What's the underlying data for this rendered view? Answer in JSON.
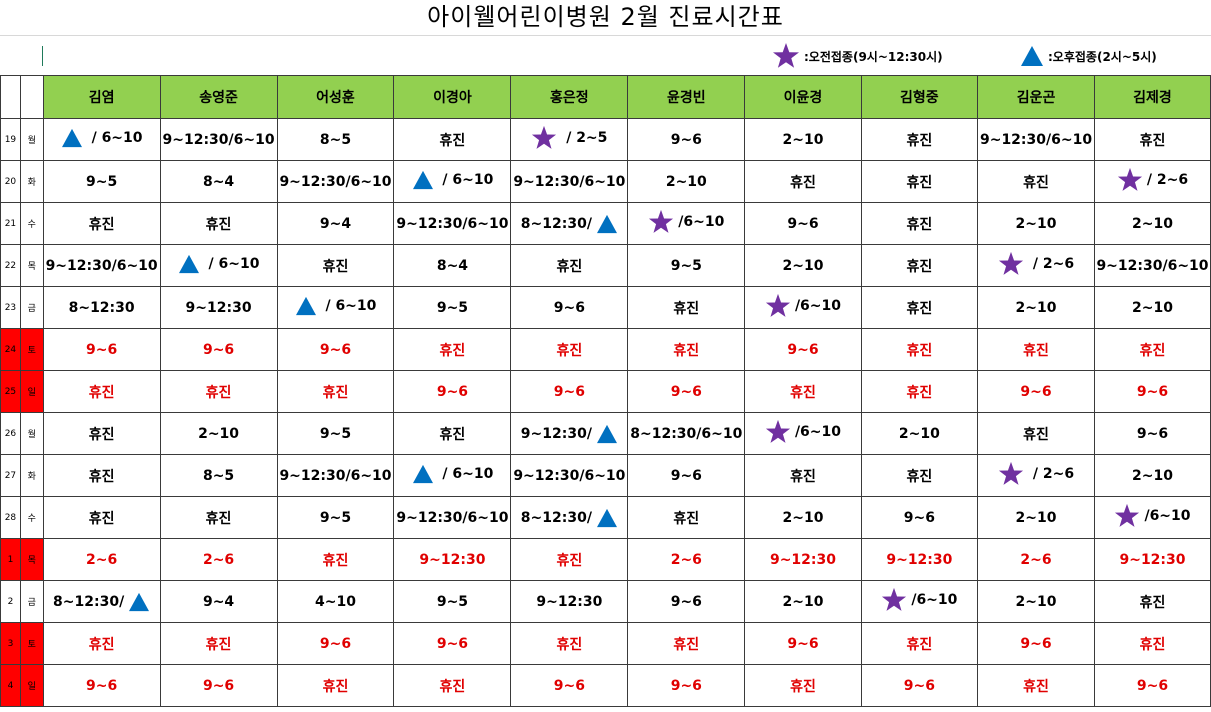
{
  "title": "아이웰어린이병원  2월 진료시간표",
  "legend": {
    "morning": {
      "icon": "star-icon",
      "color": "#7030a0",
      "label": ":오전접종(9시~12:30시)"
    },
    "afternoon": {
      "icon": "triangle-icon",
      "color": "#0070c0",
      "label": ":오후접종(2시~5시)"
    }
  },
  "doctors": [
    "김염",
    "송영준",
    "어성훈",
    "이경아",
    "홍은정",
    "윤경빈",
    "이윤경",
    "김형중",
    "김운곤",
    "김제경"
  ],
  "rows": [
    {
      "day": "19",
      "weekday": "월",
      "red": false,
      "cells": [
        {
          "icon": "triangle",
          "text": " / 6~10"
        },
        {
          "text": "9~12:30/6~10"
        },
        {
          "text": "8~5"
        },
        {
          "text": "휴진"
        },
        {
          "icon": "star",
          "text": " / 2~5"
        },
        {
          "text": "9~6"
        },
        {
          "text": "2~10"
        },
        {
          "text": "휴진"
        },
        {
          "text": "9~12:30/6~10"
        },
        {
          "text": "휴진"
        }
      ]
    },
    {
      "day": "20",
      "weekday": "화",
      "red": false,
      "cells": [
        {
          "text": "9~5"
        },
        {
          "text": "8~4"
        },
        {
          "text": "9~12:30/6~10"
        },
        {
          "icon": "triangle",
          "text": " / 6~10"
        },
        {
          "text": "9~12:30/6~10"
        },
        {
          "text": "2~10"
        },
        {
          "text": "휴진"
        },
        {
          "text": "휴진"
        },
        {
          "text": "휴진"
        },
        {
          "icon": "star",
          "text": "/ 2~6"
        }
      ]
    },
    {
      "day": "21",
      "weekday": "수",
      "red": false,
      "cells": [
        {
          "text": "휴진"
        },
        {
          "text": "휴진"
        },
        {
          "text": "9~4"
        },
        {
          "text": "9~12:30/6~10"
        },
        {
          "text": "8~12:30/",
          "iconAfter": "triangle"
        },
        {
          "icon": "star",
          "text": "/6~10"
        },
        {
          "text": "9~6"
        },
        {
          "text": "휴진"
        },
        {
          "text": "2~10"
        },
        {
          "text": "2~10"
        }
      ]
    },
    {
      "day": "22",
      "weekday": "목",
      "red": false,
      "cells": [
        {
          "text": "9~12:30/6~10"
        },
        {
          "icon": "triangle",
          "text": " / 6~10"
        },
        {
          "text": "휴진"
        },
        {
          "text": "8~4"
        },
        {
          "text": "휴진"
        },
        {
          "text": "9~5"
        },
        {
          "text": "2~10"
        },
        {
          "text": "휴진"
        },
        {
          "icon": "star",
          "text": " / 2~6"
        },
        {
          "text": "9~12:30/6~10"
        }
      ]
    },
    {
      "day": "23",
      "weekday": "금",
      "red": false,
      "cells": [
        {
          "text": "8~12:30"
        },
        {
          "text": "9~12:30"
        },
        {
          "icon": "triangle",
          "text": " / 6~10"
        },
        {
          "text": "9~5"
        },
        {
          "text": "9~6"
        },
        {
          "text": "휴진"
        },
        {
          "icon": "star",
          "text": "/6~10"
        },
        {
          "text": "휴진"
        },
        {
          "text": "2~10"
        },
        {
          "text": "2~10"
        }
      ]
    },
    {
      "day": "24",
      "weekday": "토",
      "red": true,
      "cells": [
        {
          "text": "9~6"
        },
        {
          "text": "9~6"
        },
        {
          "text": "9~6"
        },
        {
          "text": "휴진"
        },
        {
          "text": "휴진"
        },
        {
          "text": "휴진"
        },
        {
          "text": "9~6"
        },
        {
          "text": "휴진"
        },
        {
          "text": "휴진"
        },
        {
          "text": "휴진"
        }
      ]
    },
    {
      "day": "25",
      "weekday": "일",
      "red": true,
      "cells": [
        {
          "text": "휴진"
        },
        {
          "text": "휴진"
        },
        {
          "text": "휴진"
        },
        {
          "text": "9~6"
        },
        {
          "text": "9~6"
        },
        {
          "text": "9~6"
        },
        {
          "text": "휴진"
        },
        {
          "text": "휴진"
        },
        {
          "text": "9~6"
        },
        {
          "text": "9~6"
        }
      ]
    },
    {
      "day": "26",
      "weekday": "월",
      "red": false,
      "cells": [
        {
          "text": "휴진"
        },
        {
          "text": "2~10"
        },
        {
          "text": "9~5"
        },
        {
          "text": "휴진"
        },
        {
          "text": "9~12:30/",
          "iconAfter": "triangle"
        },
        {
          "text": "8~12:30/6~10"
        },
        {
          "icon": "star",
          "text": "/6~10"
        },
        {
          "text": "2~10"
        },
        {
          "text": "휴진"
        },
        {
          "text": "9~6"
        }
      ]
    },
    {
      "day": "27",
      "weekday": "화",
      "red": false,
      "cells": [
        {
          "text": "휴진"
        },
        {
          "text": "8~5"
        },
        {
          "text": "9~12:30/6~10"
        },
        {
          "icon": "triangle",
          "text": " / 6~10"
        },
        {
          "text": "9~12:30/6~10"
        },
        {
          "text": "9~6"
        },
        {
          "text": "휴진"
        },
        {
          "text": "휴진"
        },
        {
          "icon": "star",
          "text": " / 2~6"
        },
        {
          "text": "2~10"
        }
      ]
    },
    {
      "day": "28",
      "weekday": "수",
      "red": false,
      "cells": [
        {
          "text": "휴진"
        },
        {
          "text": "휴진"
        },
        {
          "text": "9~5"
        },
        {
          "text": "9~12:30/6~10"
        },
        {
          "text": "8~12:30/",
          "iconAfter": "triangle"
        },
        {
          "text": "휴진"
        },
        {
          "text": "2~10"
        },
        {
          "text": "9~6"
        },
        {
          "text": "2~10"
        },
        {
          "icon": "star",
          "text": "/6~10"
        }
      ]
    },
    {
      "day": "1",
      "weekday": "목",
      "red": true,
      "cells": [
        {
          "text": "2~6"
        },
        {
          "text": "2~6"
        },
        {
          "text": "휴진"
        },
        {
          "text": "9~12:30"
        },
        {
          "text": "휴진"
        },
        {
          "text": "2~6"
        },
        {
          "text": "9~12:30"
        },
        {
          "text": "9~12:30"
        },
        {
          "text": "2~6"
        },
        {
          "text": "9~12:30"
        }
      ]
    },
    {
      "day": "2",
      "weekday": "금",
      "red": false,
      "cells": [
        {
          "text": "8~12:30/",
          "iconAfter": "triangle"
        },
        {
          "text": "9~4"
        },
        {
          "text": "4~10"
        },
        {
          "text": "9~5"
        },
        {
          "text": "9~12:30"
        },
        {
          "text": "9~6"
        },
        {
          "text": "2~10"
        },
        {
          "icon": "star",
          "text": "/6~10"
        },
        {
          "text": "2~10"
        },
        {
          "text": "휴진"
        }
      ]
    },
    {
      "day": "3",
      "weekday": "토",
      "red": true,
      "cells": [
        {
          "text": "휴진"
        },
        {
          "text": "휴진"
        },
        {
          "text": "9~6"
        },
        {
          "text": "9~6"
        },
        {
          "text": "휴진"
        },
        {
          "text": "휴진"
        },
        {
          "text": "9~6"
        },
        {
          "text": "휴진"
        },
        {
          "text": "9~6"
        },
        {
          "text": "휴진"
        }
      ]
    },
    {
      "day": "4",
      "weekday": "일",
      "red": true,
      "cells": [
        {
          "text": "9~6"
        },
        {
          "text": "9~6"
        },
        {
          "text": "휴진"
        },
        {
          "text": "휴진"
        },
        {
          "text": "9~6"
        },
        {
          "text": "9~6"
        },
        {
          "text": "휴진"
        },
        {
          "text": "9~6"
        },
        {
          "text": "휴진"
        },
        {
          "text": "9~6"
        }
      ]
    }
  ]
}
